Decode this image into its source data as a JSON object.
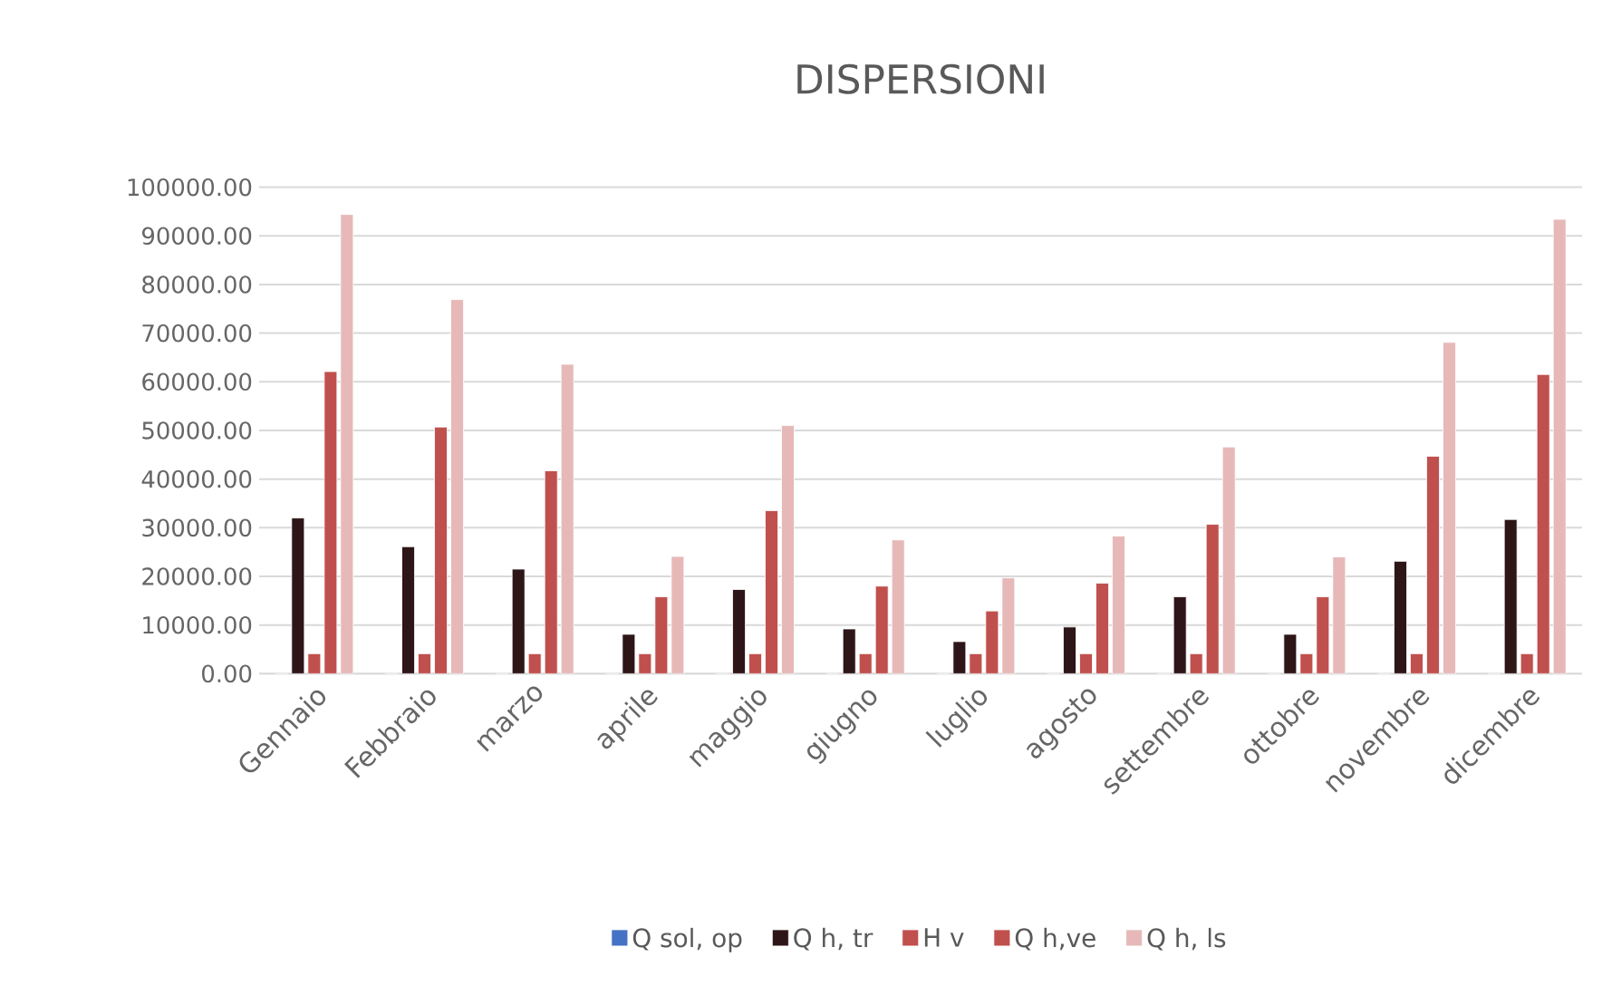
{
  "chart_data": {
    "type": "bar",
    "title": "DISPERSIONI",
    "categories": [
      "Gennaio",
      "Febbraio",
      "marzo",
      "aprile",
      "maggio",
      "giugno",
      "luglio",
      "agosto",
      "settembre",
      "ottobre",
      "novembre",
      "dicembre"
    ],
    "series": [
      {
        "name": "Q sol, op",
        "color": "#4472c4",
        "values": [
          0,
          0,
          0,
          0,
          0,
          0,
          0,
          0,
          0,
          0,
          0,
          0
        ]
      },
      {
        "name": "Q h, tr",
        "color": "#2e1517",
        "values": [
          32000,
          26100,
          21500,
          8100,
          17300,
          9200,
          6600,
          9600,
          15800,
          8100,
          23100,
          31700
        ]
      },
      {
        "name": "H v",
        "color": "#c0504d",
        "values": [
          4100,
          4100,
          4100,
          4100,
          4100,
          4100,
          4100,
          4100,
          4100,
          4100,
          4100,
          4100
        ]
      },
      {
        "name": "Q h,ve",
        "color": "#c0504d",
        "values": [
          62100,
          50700,
          41700,
          15800,
          33500,
          18000,
          12900,
          18600,
          30700,
          15800,
          44700,
          61500
        ]
      },
      {
        "name": "Q h, ls",
        "color": "#e6b9b8",
        "values": [
          94400,
          76900,
          63600,
          24100,
          51000,
          27500,
          19700,
          28300,
          46600,
          24000,
          68100,
          93400
        ]
      }
    ],
    "ylim": [
      0,
      100000
    ],
    "yticks": [
      {
        "value": 0,
        "label": "0.00"
      },
      {
        "value": 10000,
        "label": "10000.00"
      },
      {
        "value": 20000,
        "label": "20000.00"
      },
      {
        "value": 30000,
        "label": "30000.00"
      },
      {
        "value": 40000,
        "label": "40000.00"
      },
      {
        "value": 50000,
        "label": "50000.00"
      },
      {
        "value": 60000,
        "label": "60000.00"
      },
      {
        "value": 70000,
        "label": "70000.00"
      },
      {
        "value": 80000,
        "label": "80000.00"
      },
      {
        "value": 90000,
        "label": "90000.00"
      },
      {
        "value": 100000,
        "label": "100000.00"
      }
    ],
    "grid": "y",
    "legend": "bottom"
  }
}
